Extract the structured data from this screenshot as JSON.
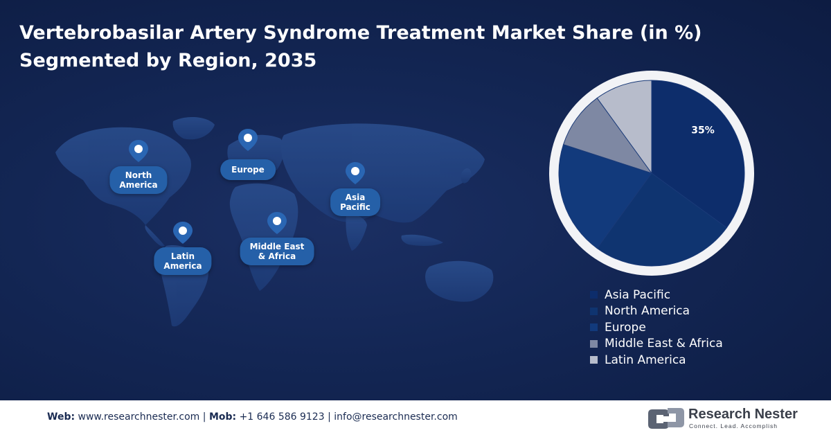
{
  "header": {
    "title_line1": "Vertebrobasilar Artery Syndrome Treatment Market Share (in %)",
    "title_line2": "Segmented by Region, 2035"
  },
  "map": {
    "pins": [
      {
        "label_line1": "North",
        "label_line2": "America",
        "icon": "location-pin-icon"
      },
      {
        "label_line1": "Europe",
        "label_line2": "",
        "icon": "location-pin-icon"
      },
      {
        "label_line1": "Asia",
        "label_line2": "Pacific",
        "icon": "location-pin-icon"
      },
      {
        "label_line1": "Latin",
        "label_line2": "America",
        "icon": "location-pin-icon"
      },
      {
        "label_line1": "Middle East",
        "label_line2": "& Africa",
        "icon": "location-pin-icon"
      }
    ]
  },
  "chart_data": {
    "type": "pie",
    "categories": [
      "Asia Pacific",
      "North America",
      "Europe",
      "Middle East & Africa",
      "Latin America"
    ],
    "values": [
      35,
      25,
      20,
      10,
      10
    ],
    "data_labels": [
      "35%",
      "",
      "",
      "",
      ""
    ],
    "colors": [
      "#0d2d6b",
      "#0f3470",
      "#123a7c",
      "#7e88a3",
      "#b7bccb"
    ],
    "legend_position": "bottom-right",
    "start_angle": "12 o'clock, clockwise"
  },
  "footer": {
    "web_label": "Web:",
    "web_value": "www.researchnester.com",
    "sep1": "|",
    "mob_label": "Mob:",
    "mob_value": "+1 646 586 9123",
    "sep2": "|",
    "email": "info@researchnester.com",
    "brand_name": "Research Nester",
    "brand_tagline": "Connect. Lead. Accomplish",
    "brand_icon": "research-nester-logo-icon"
  }
}
